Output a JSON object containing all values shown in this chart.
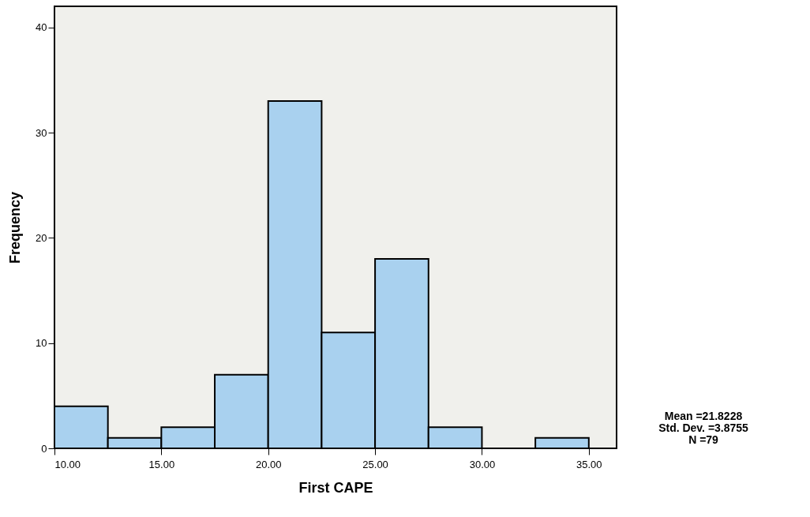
{
  "chart_data": {
    "type": "histogram",
    "xlabel": "First CAPE",
    "ylabel": "Frequency",
    "bins": [
      10,
      12.5,
      15,
      17.5,
      20,
      22.5,
      25,
      27.5,
      30,
      32.5,
      35
    ],
    "values": [
      4,
      1,
      2,
      7,
      33,
      11,
      18,
      2,
      0,
      1
    ],
    "color": "#a9d1ef",
    "xlim": [
      10,
      36.3
    ],
    "ylim": [
      0,
      42
    ],
    "xticks": [
      {
        "value": 10,
        "label": "10.00"
      },
      {
        "value": 15,
        "label": "15.00"
      },
      {
        "value": 20,
        "label": "20.00"
      },
      {
        "value": 25,
        "label": "25.00"
      },
      {
        "value": 30,
        "label": "30.00"
      },
      {
        "value": 35,
        "label": "35.00"
      }
    ],
    "yticks": [
      0,
      10,
      20,
      30,
      40
    ],
    "grid": false,
    "legend": false,
    "annotations": [
      "Mean =21.8228",
      "Std. Dev. =3.8755",
      "N =79"
    ]
  }
}
